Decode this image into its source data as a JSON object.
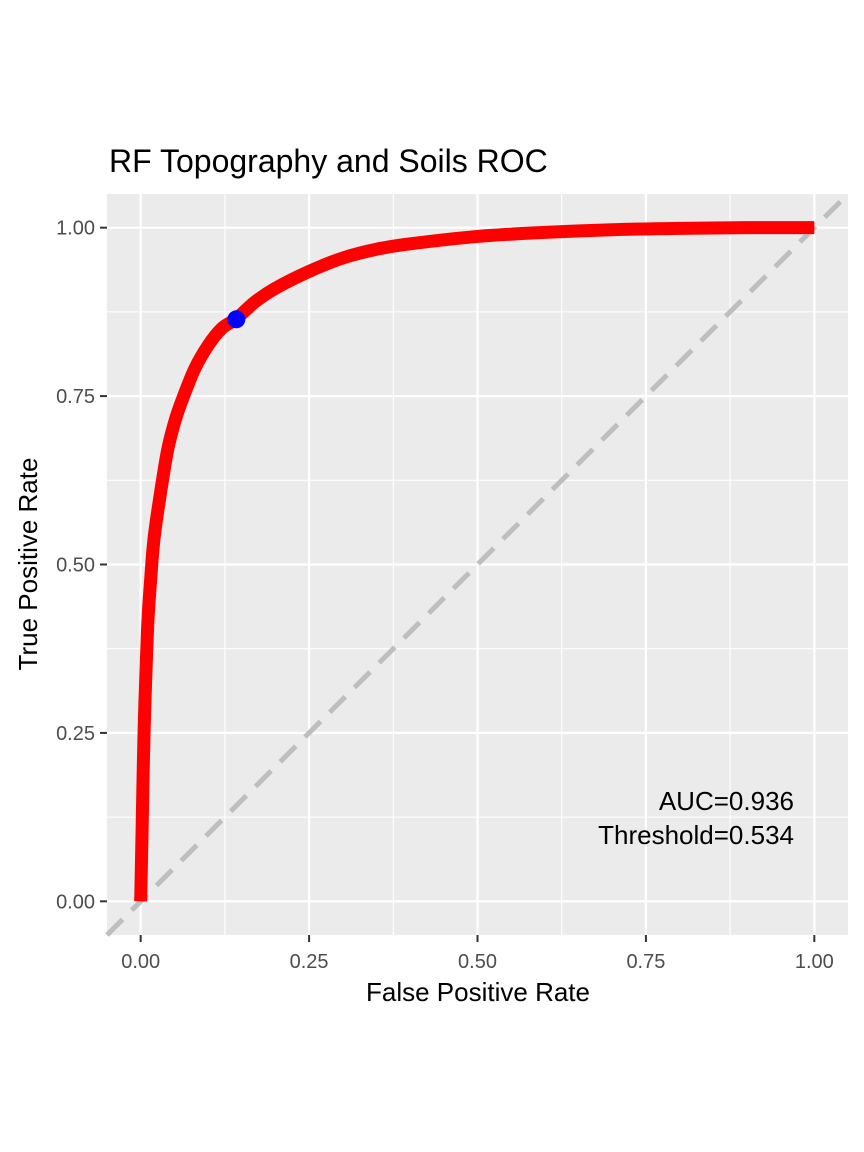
{
  "chart_data": {
    "type": "line",
    "title": "RF Topography and Soils ROC",
    "xlabel": "False Positive Rate",
    "ylabel": "True Positive Rate",
    "xlim": [
      -0.05,
      1.05
    ],
    "ylim": [
      -0.05,
      1.05
    ],
    "grid": true,
    "x_ticks": [
      0.0,
      0.25,
      0.5,
      0.75,
      1.0
    ],
    "x_tick_labels": [
      "0.00",
      "0.25",
      "0.50",
      "0.75",
      "1.00"
    ],
    "y_ticks": [
      0.0,
      0.25,
      0.5,
      0.75,
      1.0
    ],
    "y_tick_labels": [
      "0.00",
      "0.25",
      "0.50",
      "0.75",
      "1.00"
    ],
    "series": [
      {
        "color": "#ff0000",
        "x": [
          0.0,
          0.002,
          0.005,
          0.01,
          0.015,
          0.02,
          0.03,
          0.04,
          0.05,
          0.06,
          0.08,
          0.1,
          0.12,
          0.142,
          0.17,
          0.2,
          0.25,
          0.3,
          0.35,
          0.4,
          0.5,
          0.6,
          0.7,
          0.8,
          0.9,
          1.0
        ],
        "y": [
          0.0,
          0.1,
          0.25,
          0.4,
          0.48,
          0.54,
          0.61,
          0.67,
          0.71,
          0.74,
          0.79,
          0.825,
          0.85,
          0.865,
          0.89,
          0.91,
          0.935,
          0.955,
          0.968,
          0.976,
          0.987,
          0.993,
          0.997,
          0.999,
          1.0,
          1.0
        ]
      }
    ],
    "reference_line": {
      "from": [
        0,
        0
      ],
      "to": [
        1,
        1
      ],
      "color": "#bebebe",
      "style": "dashed"
    },
    "optimal_point": {
      "x": 0.142,
      "y": 0.864,
      "color": "#0000ff"
    },
    "annotations": [
      "AUC=0.936",
      "Threshold=0.534"
    ],
    "colors": {
      "panel": "#ebebeb",
      "grid": "#ffffff",
      "curve": "#ff0000",
      "point": "#0000ff",
      "diagonal": "#bebebe"
    }
  }
}
